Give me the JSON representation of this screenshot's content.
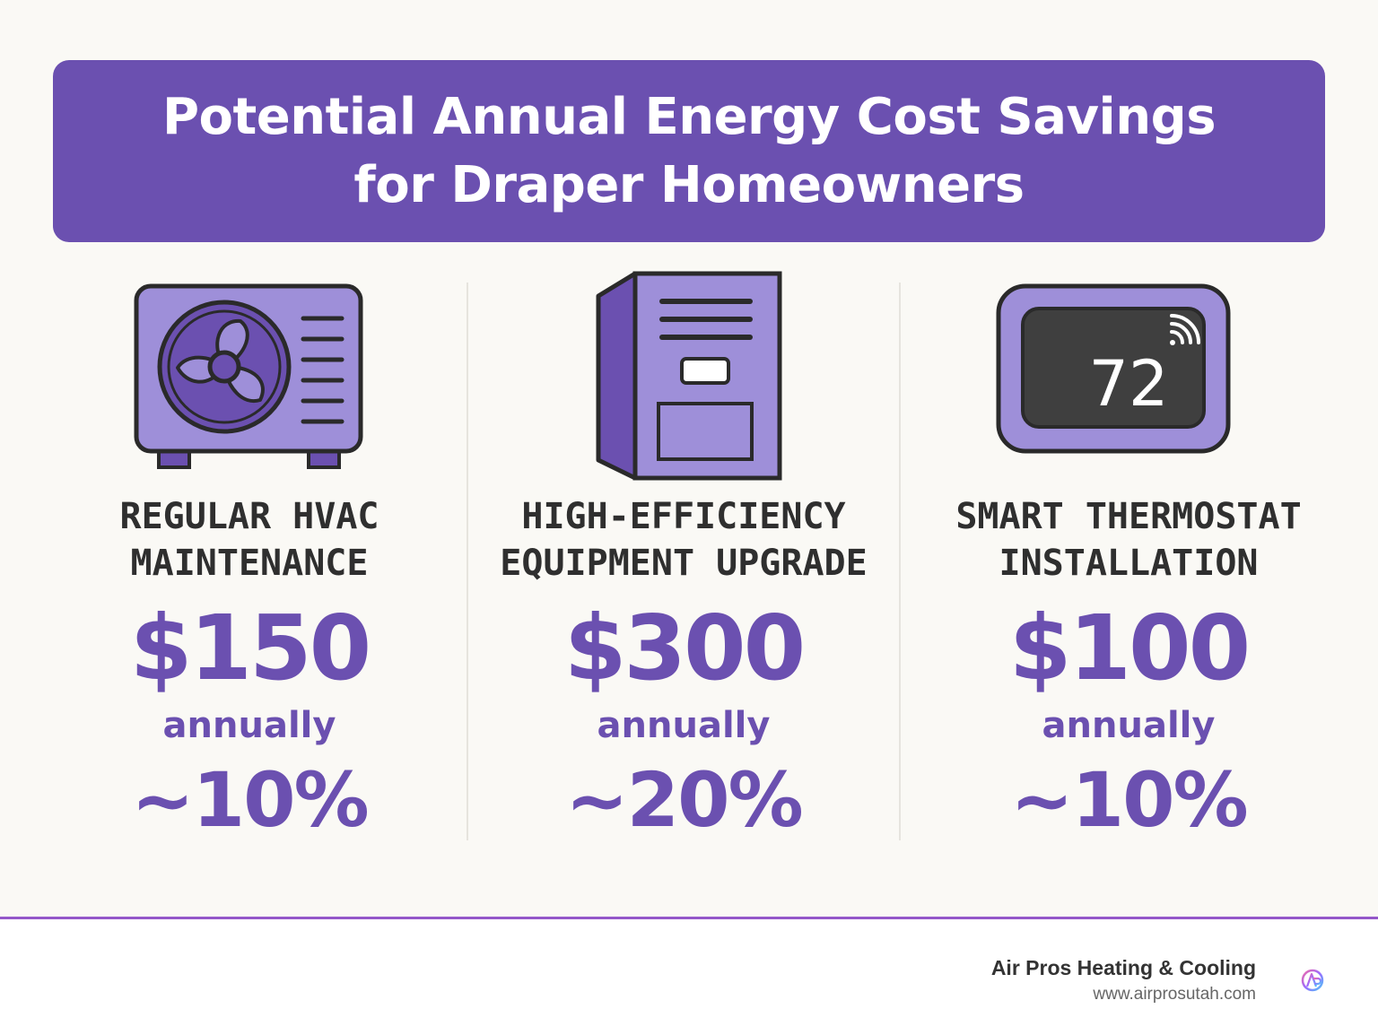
{
  "header": {
    "title_line_1": "Potential Annual Energy Cost Savings",
    "title_line_2": "for Draper Homeowners"
  },
  "colors": {
    "accent": "#6b50b0",
    "icon_fill": "#9e8fd9",
    "icon_outline": "#2a2a2a",
    "footer_rule": "#9457c9",
    "background": "#faf9f5"
  },
  "savings": [
    {
      "icon": "ac-condenser-icon",
      "label_line_1": "REGULAR HVAC",
      "label_line_2": "MAINTENANCE",
      "amount": "$150",
      "period": "annually",
      "percent": "~10%"
    },
    {
      "icon": "furnace-icon",
      "label_line_1": "HIGH-EFFICIENCY",
      "label_line_2": "EQUIPMENT UPGRADE",
      "amount": "$300",
      "period": "annually",
      "percent": "~20%"
    },
    {
      "icon": "smart-thermostat-icon",
      "label_line_1": "SMART THERMOSTAT",
      "label_line_2": "INSTALLATION",
      "amount": "$100",
      "period": "annually",
      "percent": "~10%",
      "thermostat_reading": "72"
    }
  ],
  "footer": {
    "company": "Air Pros Heating & Cooling",
    "website": "www.airprosutah.com",
    "logo": "air-pros-logo-icon"
  }
}
